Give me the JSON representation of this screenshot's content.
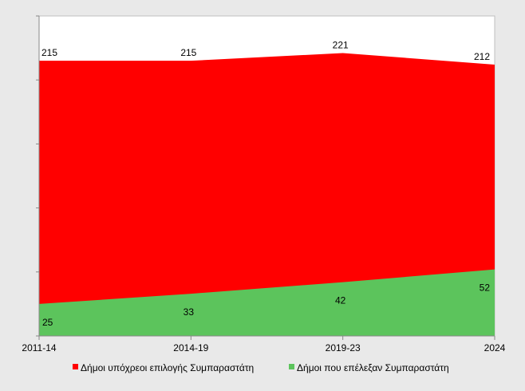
{
  "chart_data": {
    "type": "area",
    "stacking": "none",
    "categories": [
      "2011-14",
      "2014-19",
      "2019-23",
      "2024"
    ],
    "series": [
      {
        "name": "Δήμοι υπόχρεοι επιλογής Συμπαραστάτη",
        "values": [
          215,
          215,
          221,
          212
        ],
        "color": "#ff0000"
      },
      {
        "name": "Δήμοι που επέλεξαν Συμπαραστάτη",
        "values": [
          25,
          33,
          42,
          52
        ],
        "color": "#5cc45c"
      }
    ],
    "data_labels": {
      "top": [
        "215",
        "215",
        "221",
        "212"
      ],
      "bottom": [
        "25",
        "33",
        "42",
        "52"
      ]
    },
    "ylim": [
      0,
      250
    ],
    "grid": false,
    "legend_position": "bottom"
  }
}
